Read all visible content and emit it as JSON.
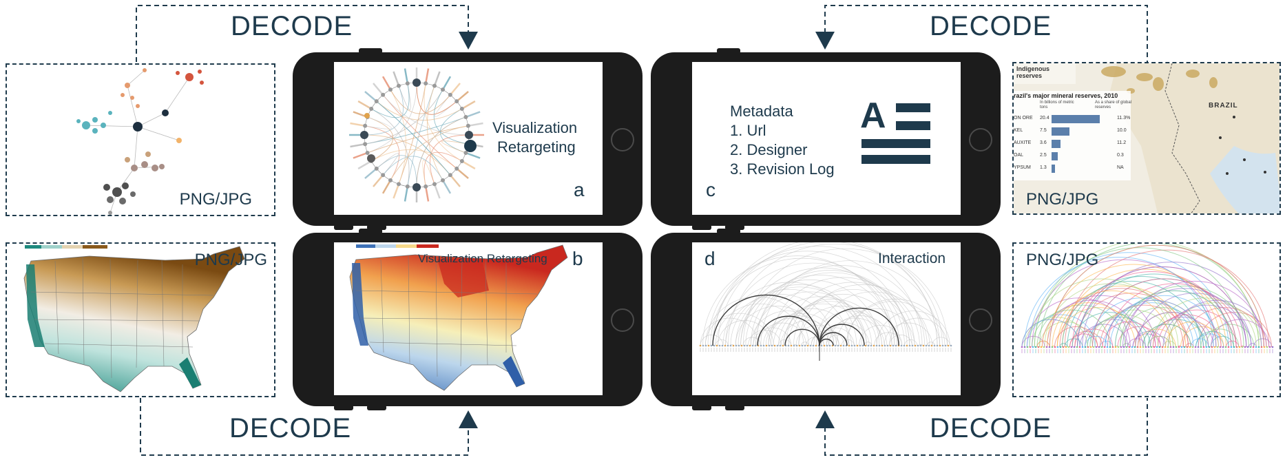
{
  "labels": {
    "decode_top_left": "DECODE",
    "decode_top_right": "DECODE",
    "decode_bottom_left": "DECODE",
    "decode_bottom_right": "DECODE",
    "png_top_left": "PNG/JPG",
    "png_bottom_left": "PNG/JPG",
    "png_top_right": "PNG/JPG",
    "png_bottom_right": "PNG/JPG"
  },
  "phones": {
    "a": {
      "letter": "a",
      "caption_line1": "Visualization",
      "caption_line2": "Retargeting"
    },
    "b": {
      "letter": "b",
      "caption": "Visualization Retargeting"
    },
    "c": {
      "letter": "c",
      "metadata_title": "Metadata",
      "items": [
        "1. Url",
        "2. Designer",
        "3. Revision Log"
      ],
      "icon_letter": "A"
    },
    "d": {
      "letter": "d",
      "caption": "Interaction"
    }
  },
  "map_top_right": {
    "title": "Indigenous reserves",
    "subtitle": "razil's major mineral reserves, 2010",
    "col1": "In billions of metric tons",
    "col2": "As a share of global reserves",
    "country": "BRAZIL",
    "rows": [
      {
        "name": "ON ORE",
        "value": "20.4",
        "share": "11.3%"
      },
      {
        "name": "KEL",
        "value": "7.5",
        "share": "10.0"
      },
      {
        "name": "AUXITE",
        "value": "3.6",
        "share": "11.2"
      },
      {
        "name": "OAL",
        "value": "2.5",
        "share": "0.3"
      },
      {
        "name": "YPSUM",
        "value": "1.3",
        "share": "NA"
      }
    ]
  },
  "colors": {
    "frame": "#1e3a4c",
    "phone": "#1c1c1c",
    "teal": "#2a8f86",
    "brown": "#8a5a1c",
    "red": "#c8322a",
    "blue": "#3a6fb0"
  }
}
